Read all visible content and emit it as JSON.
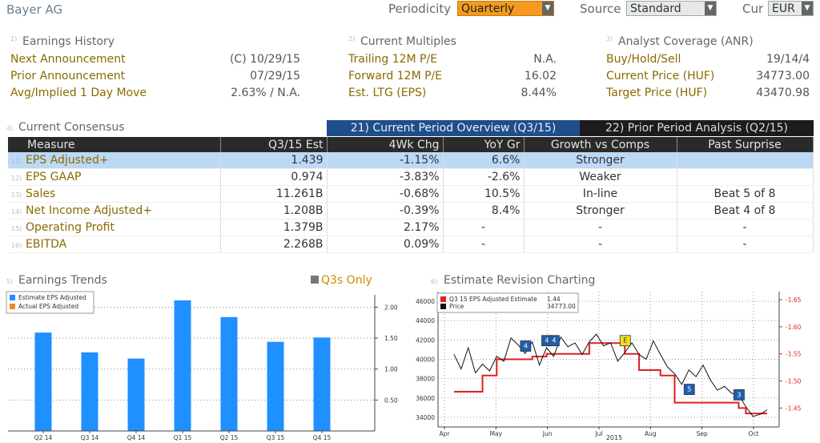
{
  "header": {
    "company": "Bayer AG",
    "periodicity_label": "Periodicity",
    "periodicity_value": "Quarterly",
    "source_label": "Source",
    "source_value": "Standard",
    "cur_label": "Cur",
    "cur_value": "EUR"
  },
  "earnings_history": {
    "title": "Earnings History",
    "rows": [
      {
        "k": "Next Announcement",
        "v": "(C)  10/29/15"
      },
      {
        "k": "Prior Announcement",
        "v": "07/29/15"
      },
      {
        "k": "Avg/Implied 1 Day Move",
        "v": "2.63% / N.A."
      }
    ]
  },
  "current_multiples": {
    "title": "Current Multiples",
    "rows": [
      {
        "k": "Trailing 12M P/E",
        "v": "N.A."
      },
      {
        "k": "Forward 12M P/E",
        "v": "16.02"
      },
      {
        "k": "Est. LTG (EPS)",
        "v": "8.44%"
      }
    ]
  },
  "analyst_coverage": {
    "title": "Analyst Coverage (ANR)",
    "rows": [
      {
        "k": "Buy/Hold/Sell",
        "v": "19/14/4"
      },
      {
        "k": "Current Price (HUF)",
        "v": "34773.00"
      },
      {
        "k": "Target Price (HUF)",
        "v": "43470.98"
      }
    ]
  },
  "consensus": {
    "title": "Current Consensus",
    "tab_current": "21) Current Period Overview (Q3/15)",
    "tab_prior": "22) Prior Period Analysis (Q2/15)",
    "columns": [
      "Measure",
      "Q3/15 Est",
      "4Wk Chg",
      "YoY Gr",
      "Growth vs Comps",
      "Past Surprise"
    ],
    "rows": [
      {
        "n": "11)",
        "measure": "EPS Adjusted+",
        "est": "1.439",
        "chg": "-1.15%",
        "yoy": "6.6%",
        "comp": "Stronger",
        "surprise": ""
      },
      {
        "n": "12)",
        "measure": "EPS GAAP",
        "est": "0.974",
        "chg": "-3.83%",
        "yoy": "-2.6%",
        "comp": "Weaker",
        "surprise": ""
      },
      {
        "n": "13)",
        "measure": "Sales",
        "est": "11.261B",
        "chg": "-0.68%",
        "yoy": "10.5%",
        "comp": "In-line",
        "surprise": "Beat 5 of 8"
      },
      {
        "n": "14)",
        "measure": "Net Income Adjusted+",
        "est": "1.208B",
        "chg": "-0.39%",
        "yoy": "8.4%",
        "comp": "Stronger",
        "surprise": "Beat 4 of 8"
      },
      {
        "n": "15)",
        "measure": "Operating Profit",
        "est": "1.379B",
        "chg": "2.17%",
        "yoy": "-",
        "comp": "-",
        "surprise": "-"
      },
      {
        "n": "16)",
        "measure": "EBITDA",
        "est": "2.268B",
        "chg": "0.09%",
        "yoy": "-",
        "comp": "-",
        "surprise": "-"
      }
    ]
  },
  "earnings_trends": {
    "title": "Earnings Trends",
    "toggle": "Q3s Only",
    "legend_estimate": "Estimate EPS Adjusted",
    "legend_actual": "Actual EPS Adjusted"
  },
  "revision_chart": {
    "title": "Estimate Revision Charting",
    "legend_est": "Q3 15 EPS Adjusted Estimate",
    "legend_est_val": "1.44",
    "legend_price": "Price",
    "legend_price_val": "34773.00",
    "year_label": "2015"
  },
  "chart_data": [
    {
      "type": "bar",
      "title": "Earnings Trends",
      "categories": [
        "Q2 14",
        "Q3 14",
        "Q4 14",
        "Q1 15",
        "Q2 15",
        "Q3 15",
        "Q4 15"
      ],
      "series": [
        {
          "name": "Estimate EPS Adjusted",
          "values": [
            1.59,
            1.27,
            1.17,
            2.11,
            1.84,
            1.44,
            1.51
          ],
          "color": "#1e90ff"
        }
      ],
      "yticks": [
        0.5,
        1.0,
        1.5,
        2.0
      ],
      "ylim": [
        0.0,
        2.2
      ],
      "grid": true
    },
    {
      "type": "line",
      "title": "Estimate Revision Charting",
      "x_labels": [
        "Apr",
        "May",
        "Jun",
        "Jul",
        "Aug",
        "Sep",
        "Oct"
      ],
      "left_axis": {
        "ticks": [
          34000,
          36000,
          38000,
          40000,
          42000,
          44000,
          46000
        ],
        "range": [
          33000,
          47000
        ]
      },
      "right_axis": {
        "ticks": [
          1.45,
          1.5,
          1.55,
          1.6,
          1.65
        ],
        "range": [
          1.415,
          1.665
        ]
      },
      "series": [
        {
          "name": "Q3 15 EPS Adjusted Estimate",
          "color": "#e02020",
          "axis": "right",
          "values": [
            1.48,
            1.48,
            1.48,
            1.48,
            1.51,
            1.51,
            1.54,
            1.54,
            1.54,
            1.54,
            1.54,
            1.545,
            1.545,
            1.55,
            1.55,
            1.55,
            1.55,
            1.55,
            1.55,
            1.57,
            1.57,
            1.57,
            1.57,
            1.57,
            1.55,
            1.55,
            1.52,
            1.52,
            1.52,
            1.51,
            1.51,
            1.46,
            1.46,
            1.46,
            1.46,
            1.46,
            1.46,
            1.46,
            1.46,
            1.46,
            1.45,
            1.44,
            1.44,
            1.44,
            1.44
          ]
        },
        {
          "name": "Price",
          "color": "#111111",
          "axis": "left",
          "values": [
            40500,
            39000,
            41200,
            38600,
            39500,
            38800,
            40300,
            39800,
            42200,
            41500,
            40600,
            41800,
            39400,
            41200,
            40300,
            42300,
            41300,
            41700,
            40500,
            41800,
            42600,
            41400,
            41700,
            39800,
            40700,
            41700,
            40500,
            40000,
            41900,
            40500,
            39200,
            38500,
            37400,
            38900,
            38200,
            39400,
            37900,
            36800,
            37200,
            36500,
            36300,
            35100,
            34100,
            34300,
            34773
          ]
        }
      ],
      "markers": [
        {
          "label": "4",
          "type": "event",
          "index": 10
        },
        {
          "label": "4",
          "type": "event",
          "index": 13
        },
        {
          "label": "4",
          "type": "event",
          "index": 14
        },
        {
          "label": "E",
          "type": "earnings",
          "index": 24
        },
        {
          "label": "5",
          "type": "event",
          "index": 33
        },
        {
          "label": "3",
          "type": "event",
          "index": 40
        }
      ]
    }
  ]
}
